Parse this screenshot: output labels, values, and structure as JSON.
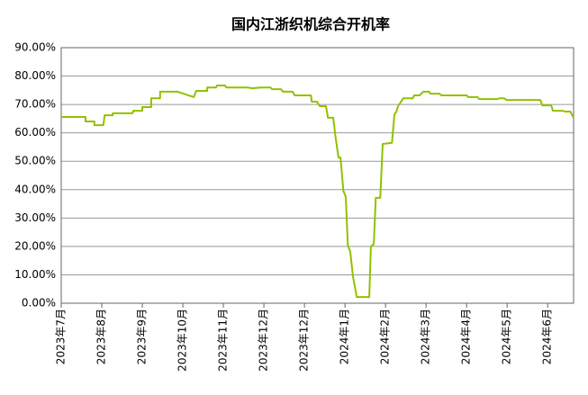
{
  "chart_data": {
    "type": "line",
    "title": "国内江浙织机综合开机率",
    "x": [
      0,
      6.0,
      6.0,
      8.2,
      8.2,
      10.4,
      10.7,
      12.7,
      12.7,
      17.6,
      17.8,
      20.0,
      20.0,
      22.2,
      22.2,
      24.4,
      24.4,
      28.7,
      32.7,
      33.3,
      36.0,
      36.0,
      38.2,
      38.4,
      40.4,
      40.7,
      46.0,
      47.1,
      49.3,
      51.6,
      52.0,
      54.2,
      54.7,
      57.1,
      57.6,
      61.6,
      61.8,
      63.1,
      63.8,
      65.3,
      65.8,
      67.1,
      67.6,
      68.4,
      68.9,
      69.6,
      70.2,
      70.7,
      71.3,
      72.0,
      72.9,
      76.0,
      76.4,
      77.1,
      77.6,
      78.7,
      79.3,
      81.6,
      82.2,
      82.7,
      83.1,
      84.4,
      86.7,
      87.1,
      88.4,
      89.3,
      90.7,
      91.1,
      93.3,
      93.8,
      100.0,
      100.4,
      102.7,
      103.1,
      107.6,
      108.2,
      109.3,
      109.8,
      118.2,
      118.7,
      120.9,
      121.3,
      123.8,
      124.2,
      125.6,
      126.4
    ],
    "series": [
      {
        "name": "开机率",
        "color": "#92c000",
        "values": [
          65.6,
          65.6,
          64.0,
          64.0,
          62.7,
          62.7,
          66.2,
          66.2,
          66.9,
          66.9,
          67.8,
          67.8,
          69.1,
          69.1,
          72.2,
          72.2,
          74.5,
          74.5,
          72.6,
          74.8,
          74.8,
          76.0,
          76.0,
          76.7,
          76.7,
          76.0,
          76.0,
          75.7,
          76.0,
          76.0,
          75.4,
          75.4,
          74.5,
          74.5,
          73.2,
          73.2,
          71.0,
          71.0,
          69.4,
          69.4,
          65.3,
          65.3,
          59.3,
          51.3,
          51.3,
          39.6,
          37.5,
          20.3,
          18.1,
          9.2,
          2.2,
          2.2,
          20.0,
          20.8,
          37.1,
          37.1,
          56.1,
          56.5,
          66.5,
          67.5,
          69.4,
          72.2,
          72.2,
          73.2,
          73.2,
          74.5,
          74.5,
          73.8,
          73.8,
          73.2,
          73.2,
          72.6,
          72.6,
          71.9,
          71.9,
          72.2,
          72.2,
          71.6,
          71.6,
          69.7,
          69.7,
          67.8,
          67.8,
          67.5,
          67.5,
          65.3
        ]
      }
    ],
    "xlim": [
      0,
      126.4
    ],
    "xticks": [
      {
        "value": 0,
        "label": "2023年7月"
      },
      {
        "value": 10,
        "label": "2023年8月"
      },
      {
        "value": 20,
        "label": "2023年9月"
      },
      {
        "value": 30,
        "label": "2023年10月"
      },
      {
        "value": 40,
        "label": "2023年11月"
      },
      {
        "value": 50,
        "label": "2023年12月"
      },
      {
        "value": 60,
        "label": "2023年12月"
      },
      {
        "value": 70,
        "label": "2024年1月"
      },
      {
        "value": 80,
        "label": "2024年2月"
      },
      {
        "value": 90,
        "label": "2024年3月"
      },
      {
        "value": 100,
        "label": "2024年4月"
      },
      {
        "value": 110,
        "label": "2024年5月"
      },
      {
        "value": 120,
        "label": "2024年6月"
      }
    ],
    "ylim": [
      0,
      90
    ],
    "yticks": [
      {
        "value": 0,
        "label": "0.00%"
      },
      {
        "value": 10,
        "label": "10.00%"
      },
      {
        "value": 20,
        "label": "20.00%"
      },
      {
        "value": 30,
        "label": "30.00%"
      },
      {
        "value": 40,
        "label": "40.00%"
      },
      {
        "value": 50,
        "label": "50.00%"
      },
      {
        "value": 60,
        "label": "60.00%"
      },
      {
        "value": 70,
        "label": "70.00%"
      },
      {
        "value": 80,
        "label": "80.00%"
      },
      {
        "value": 90,
        "label": "90.00%"
      }
    ],
    "grid": true
  }
}
